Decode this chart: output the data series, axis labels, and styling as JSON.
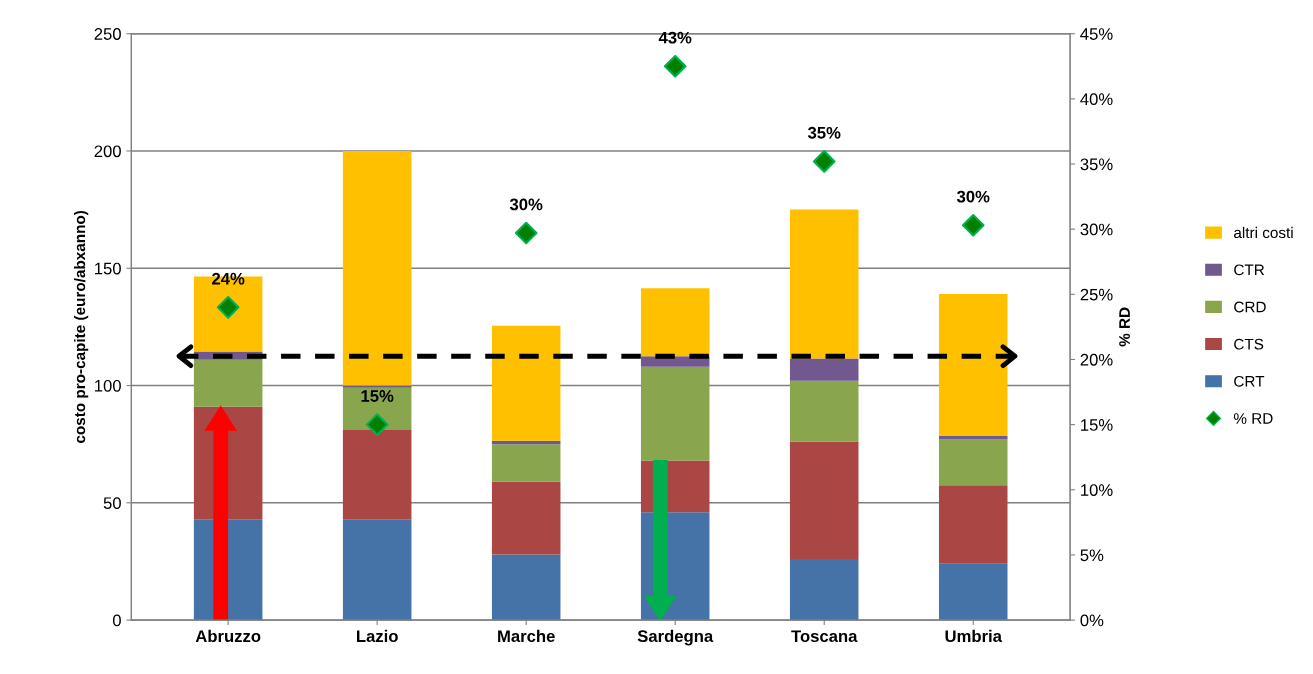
{
  "chart_data": {
    "type": "bar",
    "stacked": true,
    "categories": [
      "Abruzzo",
      "Lazio",
      "Marche",
      "Sardegna",
      "Toscana",
      "Umbria"
    ],
    "ylabel": "costo pro-capite (euro/abxanno)",
    "y2label": "% RD",
    "ylim": [
      0,
      250
    ],
    "yticks": [
      0,
      50,
      100,
      150,
      200,
      250
    ],
    "y2lim": [
      0,
      45
    ],
    "y2ticks": [
      {
        "value": 0,
        "label": "0%"
      },
      {
        "value": 5,
        "label": "5%"
      },
      {
        "value": 10,
        "label": "10%"
      },
      {
        "value": 15,
        "label": "15%"
      },
      {
        "value": 20,
        "label": "20%"
      },
      {
        "value": 25,
        "label": "25%"
      },
      {
        "value": 30,
        "label": "30%"
      },
      {
        "value": 35,
        "label": "35%"
      },
      {
        "value": 40,
        "label": "40%"
      },
      {
        "value": 45,
        "label": "45%"
      }
    ],
    "grid": "y",
    "legend": "right",
    "series": [
      {
        "name": "CRT",
        "color": "#4572a7",
        "values": [
          43,
          43,
          28,
          46,
          26,
          24
        ]
      },
      {
        "name": "CTS",
        "color": "#aa4643",
        "values": [
          48,
          38,
          31,
          22,
          50,
          33.5
        ]
      },
      {
        "name": "CRD",
        "color": "#89a54e",
        "values": [
          20,
          18,
          16,
          40,
          26,
          19.5
        ]
      },
      {
        "name": "CTR",
        "color": "#71588f",
        "values": [
          3.5,
          1,
          1.5,
          4.5,
          9.5,
          1.5
        ]
      },
      {
        "name": "altri costi",
        "color": "#ffc000",
        "values": [
          32,
          100,
          49,
          29,
          63.5,
          60.5
        ]
      },
      {
        "name": "% RD",
        "type": "scatter",
        "axis": "y2",
        "marker": "diamond",
        "color": "#008000",
        "values": [
          24,
          15,
          29.7,
          42.5,
          35.2,
          30.3
        ],
        "value_labels": [
          "24%",
          "15%",
          "30%",
          "43%",
          "35%",
          "30%"
        ]
      }
    ],
    "ref_lines": [
      {
        "axis": "y",
        "value": 112.5,
        "color": "#000000",
        "line_style": "dashed"
      }
    ]
  }
}
